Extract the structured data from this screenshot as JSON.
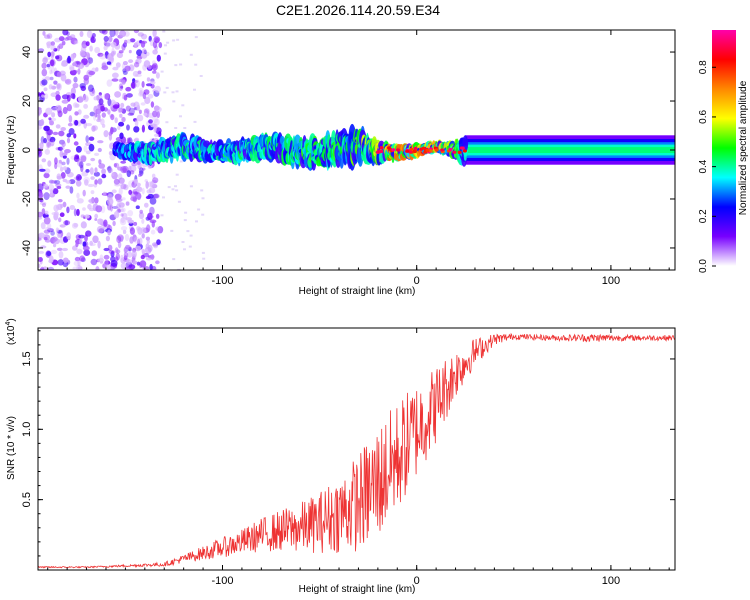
{
  "figure_title": "C2E1.2026.114.20.59.E34",
  "chart_data": [
    {
      "type": "heatmap",
      "panel": "spectrogram",
      "xlabel": "Height of straight line (km)",
      "ylabel": "Frequency (Hz)",
      "xlim": [
        -195,
        133
      ],
      "ylim": [
        -49,
        49
      ],
      "x_ticks": [
        -100,
        0,
        100
      ],
      "x_tick_labels": [
        "-100",
        "0",
        "100"
      ],
      "y_ticks": [
        -40,
        -20,
        0,
        20,
        40
      ],
      "y_tick_labels": [
        "-40",
        "-20",
        "0",
        "20",
        "40"
      ],
      "noise_region_x": [
        -195,
        -132
      ],
      "sparse_noise_x": [
        -132,
        -110
      ],
      "signal_band": [
        {
          "x": -155,
          "half_width_hz": 3,
          "peak": 0.35
        },
        {
          "x": -140,
          "half_width_hz": 5,
          "peak": 0.4
        },
        {
          "x": -120,
          "half_width_hz": 6,
          "peak": 0.45
        },
        {
          "x": -100,
          "half_width_hz": 5,
          "peak": 0.45
        },
        {
          "x": -80,
          "half_width_hz": 6,
          "peak": 0.45
        },
        {
          "x": -60,
          "half_width_hz": 7,
          "peak": 0.5
        },
        {
          "x": -40,
          "half_width_hz": 8,
          "peak": 0.5
        },
        {
          "x": -30,
          "half_width_hz": 9,
          "peak": 0.55
        },
        {
          "x": -15,
          "half_width_hz": 4,
          "peak": 0.75
        },
        {
          "x": 0,
          "half_width_hz": 3,
          "peak": 0.85
        },
        {
          "x": 10,
          "half_width_hz": 2,
          "peak": 0.88
        },
        {
          "x": 25,
          "half_width_hz": 6,
          "peak": 0.4
        },
        {
          "x": 60,
          "half_width_hz": 6,
          "peak": 0.4
        },
        {
          "x": 100,
          "half_width_hz": 6,
          "peak": 0.4
        },
        {
          "x": 133,
          "half_width_hz": 6,
          "peak": 0.4
        }
      ]
    },
    {
      "type": "colorbar",
      "label": "Normalized spectral amplitude",
      "range": [
        0.0,
        0.95
      ],
      "ticks": [
        0.0,
        0.2,
        0.4,
        0.6,
        0.8
      ],
      "tick_labels": [
        "0.0",
        "0.2",
        "0.4",
        "0.6",
        "0.8"
      ],
      "stops": [
        "#ffffff",
        "#7700ff",
        "#0000ff",
        "#00ffff",
        "#00ff00",
        "#ffff00",
        "#ff8800",
        "#ff0000",
        "#ff00aa"
      ]
    },
    {
      "type": "line",
      "panel": "snr",
      "xlabel": "Height of straight line (km)",
      "ylabel": "SNR (10 * v/v)",
      "y_exponent_label": "(x10",
      "y_exponent": "4",
      "xlim": [
        -195,
        133
      ],
      "ylim": [
        0.0,
        1.72
      ],
      "x_ticks": [
        -100,
        0,
        100
      ],
      "x_tick_labels": [
        "-100",
        "0",
        "100"
      ],
      "y_ticks": [
        0.5,
        1.0,
        1.5
      ],
      "y_tick_labels": [
        "0.5",
        "1.0",
        "1.5"
      ],
      "series": [
        {
          "name": "SNR",
          "color": "#ee3333",
          "x": [
            -195,
            -170,
            -150,
            -130,
            -120,
            -110,
            -100,
            -90,
            -80,
            -70,
            -60,
            -50,
            -40,
            -30,
            -20,
            -10,
            0,
            10,
            20,
            30,
            40,
            50,
            70,
            90,
            110,
            133
          ],
          "y": [
            0.02,
            0.02,
            0.03,
            0.04,
            0.08,
            0.12,
            0.16,
            0.2,
            0.25,
            0.28,
            0.3,
            0.34,
            0.4,
            0.48,
            0.62,
            0.8,
            1.0,
            1.18,
            1.4,
            1.55,
            1.64,
            1.66,
            1.65,
            1.65,
            1.65,
            1.65
          ],
          "noise": [
            0.005,
            0.005,
            0.008,
            0.015,
            0.03,
            0.05,
            0.07,
            0.09,
            0.12,
            0.15,
            0.18,
            0.22,
            0.28,
            0.35,
            0.42,
            0.4,
            0.35,
            0.28,
            0.18,
            0.1,
            0.04,
            0.02,
            0.02,
            0.03,
            0.02,
            0.02
          ]
        }
      ]
    }
  ]
}
